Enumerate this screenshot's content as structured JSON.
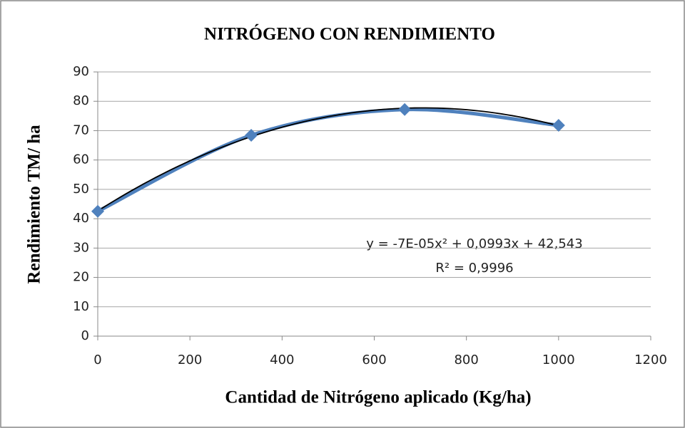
{
  "chart_data": {
    "type": "scatter",
    "title": "NITRÓGENO CON RENDIMIENTO",
    "xlabel": "Cantidad de Nitrógeno aplicado (Kg/ha)",
    "ylabel": "Rendimiento TM/ ha",
    "series": [
      {
        "name": "Rendimiento",
        "color": "#4f81bd",
        "x": [
          0,
          333,
          666,
          1000
        ],
        "values": [
          42.5,
          68.4,
          77.2,
          71.8
        ]
      }
    ],
    "trendline": {
      "type": "polynomial",
      "color": "#000000",
      "equation": "y = -7E-05x² + 0,0993x + 42,543",
      "r2": "R² = 0,9996"
    },
    "xlim": [
      0,
      1200
    ],
    "xticks": [
      0,
      200,
      400,
      600,
      800,
      1000,
      1200
    ],
    "ylim": [
      0,
      90
    ],
    "yticks": [
      0,
      10,
      20,
      30,
      40,
      50,
      60,
      70,
      80,
      90
    ],
    "grid": true
  }
}
